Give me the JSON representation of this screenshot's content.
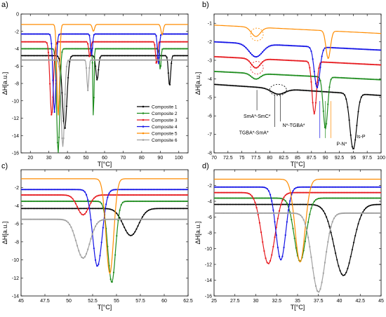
{
  "chart_data": [
    {
      "panel_label": "a)",
      "type": "line",
      "xlabel": "T[°C]",
      "ylabel": "ΔH[a.u.]",
      "xlim": [
        15,
        105
      ],
      "ylim": [
        -16,
        0
      ],
      "xticks": [
        20,
        30,
        40,
        50,
        60,
        70,
        80,
        90,
        100
      ],
      "yticks": [
        0,
        -2,
        -4,
        -6,
        -8,
        -10,
        -12,
        -14,
        -16
      ],
      "legend_position": "lower-right",
      "series": [
        {
          "name": "Composite 1",
          "color": "#000000",
          "baseline": -4.8,
          "drift": 0.0,
          "peaks": [
            [
              38.5,
              -8.5,
              1.2
            ],
            [
              56,
              -2.8,
              0.7
            ],
            [
              95,
              -3.5,
              0.6
            ]
          ]
        },
        {
          "name": "Composite 2",
          "color": "#1e8c1e",
          "baseline": -4.0,
          "drift": 0.0,
          "peaks": [
            [
              35,
              -12.0,
              0.8
            ],
            [
              54,
              -8.5,
              0.3
            ],
            [
              90,
              -2.5,
              0.4
            ]
          ]
        },
        {
          "name": "Composite 3",
          "color": "#e6191e",
          "baseline": -3.2,
          "drift": 0.0,
          "peaks": [
            [
              31.5,
              -8.5,
              0.9
            ],
            [
              52,
              -1.8,
              0.5
            ],
            [
              88,
              -2.6,
              0.5
            ]
          ]
        },
        {
          "name": "Composite 4",
          "color": "#1414e6",
          "baseline": -2.3,
          "drift": 0.0,
          "peaks": [
            [
              33,
              -9.0,
              0.8
            ],
            [
              53,
              -2.5,
              0.5
            ],
            [
              89,
              -3.5,
              0.5
            ]
          ]
        },
        {
          "name": "Composite 5",
          "color": "#ff8c00",
          "baseline": -1.2,
          "drift": 0.0,
          "peaks": [
            [
              35,
              -10.5,
              0.7
            ],
            [
              54,
              -0.8,
              0.6
            ],
            [
              91,
              -1.2,
              0.6
            ]
          ]
        },
        {
          "name": "Composite 6",
          "color": "#a0a0a0",
          "baseline": -5.3,
          "drift": 0.0,
          "peaks": [
            [
              37.5,
              -10.0,
              0.9
            ],
            [
              51,
              -3.5,
              0.5
            ]
          ]
        }
      ]
    },
    {
      "panel_label": "b)",
      "type": "line",
      "xlabel": "T[°C]",
      "ylabel": "ΔH[a.u.]",
      "xlim": [
        70,
        100
      ],
      "ylim": [
        -8,
        -0.5
      ],
      "xticks": [
        70,
        72.5,
        75,
        77.5,
        80,
        82.5,
        85,
        87.5,
        90,
        92.5,
        95,
        97.5,
        100
      ],
      "yticks": [
        -1,
        -2,
        -3,
        -4,
        -5,
        -6,
        -7,
        -8
      ],
      "annotations": [
        "SmA*-SmC*",
        "TGBA*-SmA*",
        "N*-TGBA*",
        "P-N*",
        "Is-P"
      ],
      "series": [
        {
          "name": "Composite 1",
          "color": "#000000",
          "baseline": -4.3,
          "drift": -0.02,
          "peaks": [
            [
              81.5,
              -0.3,
              1.2
            ],
            [
              95,
              -3.0,
              0.6
            ]
          ]
        },
        {
          "name": "Composite 2",
          "color": "#1e8c1e",
          "baseline": -3.6,
          "drift": -0.015,
          "peaks": [
            [
              77.5,
              -0.3,
              0.8
            ],
            [
              90,
              -2.8,
              0.4
            ]
          ]
        },
        {
          "name": "Composite 3",
          "color": "#e6191e",
          "baseline": -2.8,
          "drift": -0.015,
          "peaks": [
            [
              77.5,
              -0.5,
              0.8
            ],
            [
              88,
              -2.8,
              0.4
            ]
          ]
        },
        {
          "name": "Composite 4",
          "color": "#1414e6",
          "baseline": -2.0,
          "drift": -0.015,
          "peaks": [
            [
              77.5,
              -0.7,
              1.2
            ],
            [
              88.5,
              -2.2,
              0.5
            ]
          ]
        },
        {
          "name": "Composite 5",
          "color": "#ff8c00",
          "baseline": -1.1,
          "drift": -0.015,
          "peaks": [
            [
              77.5,
              -0.5,
              0.8
            ],
            [
              90.5,
              -1.5,
              0.4
            ]
          ]
        }
      ]
    },
    {
      "panel_label": "c)",
      "type": "line",
      "xlabel": "T[°C]",
      "ylabel": "ΔH[a.u.]",
      "xlim": [
        45,
        62.5
      ],
      "ylim": [
        -14,
        0
      ],
      "xticks": [
        45,
        47.5,
        50,
        52.5,
        55,
        57.5,
        60,
        62.5
      ],
      "yticks": [
        -2,
        -4,
        -6,
        -8,
        -10,
        -12,
        -14
      ],
      "series": [
        {
          "name": "Composite 1",
          "color": "#000000",
          "baseline": -4.3,
          "drift": 0.0,
          "peaks": [
            [
              56.5,
              -3.0,
              0.8
            ]
          ]
        },
        {
          "name": "Composite 2",
          "color": "#1e8c1e",
          "baseline": -3.5,
          "drift": 0.0,
          "peaks": [
            [
              54.5,
              -9.0,
              0.4
            ]
          ]
        },
        {
          "name": "Composite 3",
          "color": "#e6191e",
          "baseline": -2.8,
          "drift": 0.0,
          "peaks": [
            [
              51.5,
              -2.2,
              0.6
            ]
          ]
        },
        {
          "name": "Composite 4",
          "color": "#1414e6",
          "baseline": -2.2,
          "drift": 0.0,
          "peaks": [
            [
              53,
              -8.5,
              0.5
            ]
          ]
        },
        {
          "name": "Composite 5",
          "color": "#ff8c00",
          "baseline": -1.0,
          "drift": 0.0,
          "peaks": [
            [
              54.3,
              -10.5,
              0.4
            ]
          ]
        },
        {
          "name": "Composite 6",
          "color": "#a0a0a0",
          "baseline": -5.5,
          "drift": 0.0,
          "peaks": [
            [
              51.5,
              -4.3,
              0.7
            ]
          ]
        }
      ]
    },
    {
      "panel_label": "d)",
      "type": "line",
      "xlabel": "T[°C]",
      "ylabel": "ΔH[a.u.]",
      "xlim": [
        25,
        45
      ],
      "ylim": [
        -16,
        0
      ],
      "xticks": [
        25,
        27.5,
        30,
        32.5,
        35,
        37.5,
        40,
        42.5,
        45
      ],
      "yticks": [
        -2,
        -4,
        -6,
        -8,
        -10,
        -12,
        -14,
        -16
      ],
      "series": [
        {
          "name": "Composite 1",
          "color": "#000000",
          "baseline": -4.4,
          "drift": 0.0,
          "peaks": [
            [
              40.5,
              -9.0,
              1.1
            ]
          ]
        },
        {
          "name": "Composite 2",
          "color": "#1e8c1e",
          "baseline": -3.6,
          "drift": 0.0,
          "peaks": [
            [
              35.3,
              -8.0,
              0.7
            ]
          ]
        },
        {
          "name": "Composite 3",
          "color": "#e6191e",
          "baseline": -2.9,
          "drift": 0.0,
          "peaks": [
            [
              31.5,
              -9.0,
              0.8
            ]
          ]
        },
        {
          "name": "Composite 4",
          "color": "#1414e6",
          "baseline": -2.2,
          "drift": 0.0,
          "peaks": [
            [
              33,
              -9.2,
              0.6
            ]
          ]
        },
        {
          "name": "Composite 5",
          "color": "#ff8c00",
          "baseline": -1.2,
          "drift": 0.0,
          "peaks": [
            [
              35.3,
              -10.5,
              0.6
            ]
          ]
        },
        {
          "name": "Composite 6",
          "color": "#a0a0a0",
          "baseline": -5.5,
          "drift": 0.0,
          "peaks": [
            [
              37.5,
              -10.0,
              0.8
            ]
          ]
        }
      ]
    }
  ]
}
